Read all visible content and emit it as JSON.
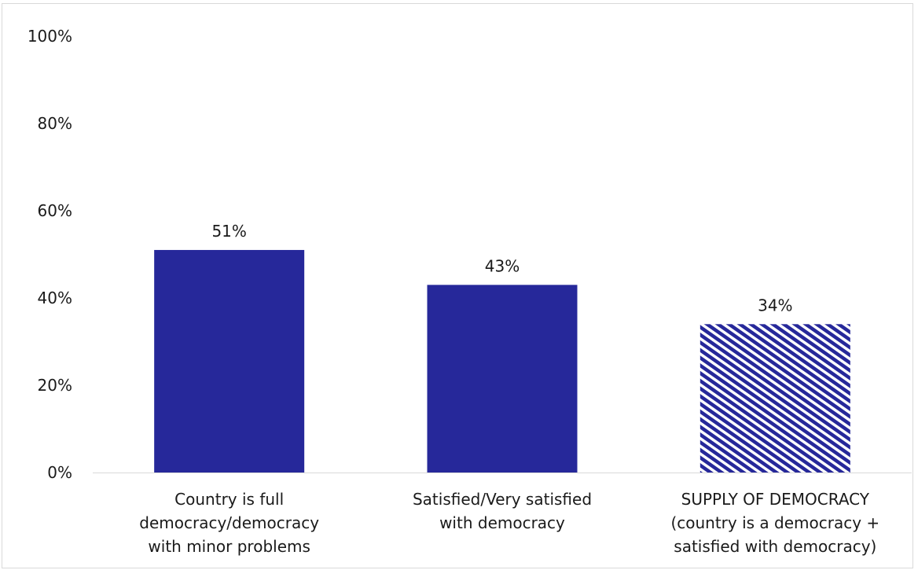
{
  "chart_data": {
    "type": "bar",
    "title": "",
    "xlabel": "",
    "ylabel": "",
    "ylim": [
      0,
      100
    ],
    "yticks": [
      0,
      20,
      40,
      60,
      80,
      100
    ],
    "ytick_labels": [
      "0%",
      "20%",
      "40%",
      "60%",
      "80%",
      "100%"
    ],
    "categories": [
      [
        "Country is full",
        "democracy/democracy",
        "with minor problems"
      ],
      [
        "Satisfied/Very satisfied",
        "with democracy"
      ],
      [
        "SUPPLY OF DEMOCRACY",
        "(country is a democracy +",
        "satisfied with democracy)"
      ]
    ],
    "values": [
      51,
      43,
      34
    ],
    "data_labels": [
      "51%",
      "43%",
      "34%"
    ],
    "bar_styles": [
      "solid",
      "solid",
      "hatched"
    ],
    "grid": false,
    "legend": "none"
  },
  "colors": {
    "bar": "#26289a",
    "hatch_bg": "#ffffff",
    "axis": "#d9d9d9"
  }
}
